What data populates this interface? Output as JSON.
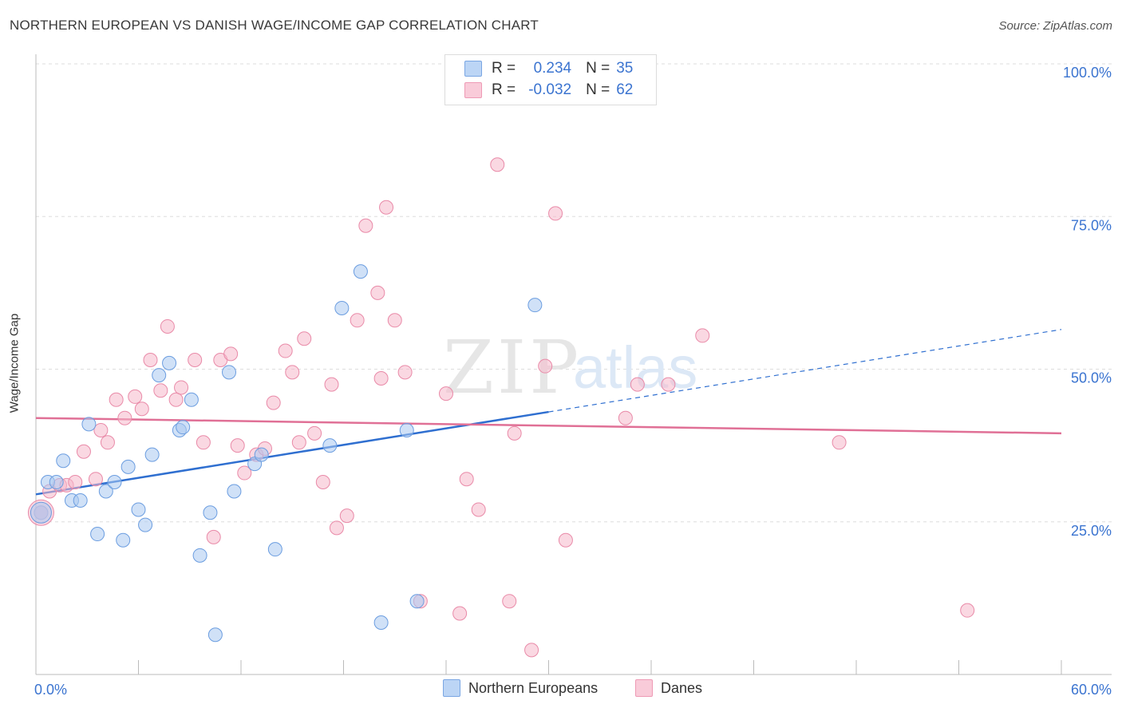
{
  "title": "NORTHERN EUROPEAN VS DANISH WAGE/INCOME GAP CORRELATION CHART",
  "source": "Source: ZipAtlas.com",
  "watermark": {
    "zip": "ZIP",
    "atlas": "atlas"
  },
  "legend": {
    "rows": [
      {
        "r_label": "R =",
        "r_value": "0.234",
        "n_label": "N =",
        "n_value": "35"
      },
      {
        "r_label": "R =",
        "r_value": "-0.032",
        "n_label": "N =",
        "n_value": "62"
      }
    ]
  },
  "series_labels": {
    "a": "Northern Europeans",
    "b": "Danes"
  },
  "colors": {
    "blue_fill": "#a9c8f0",
    "blue_stroke": "#6b9de0",
    "blue_line": "#2f6fd0",
    "pink_fill": "#f6b8cb",
    "pink_stroke": "#e98aa8",
    "pink_line": "#e07096",
    "tick_text": "#3b74d0",
    "grid": "#dddddd"
  },
  "chart_data": {
    "type": "scatter",
    "title": "NORTHERN EUROPEAN VS DANISH WAGE/INCOME GAP CORRELATION CHART",
    "xlabel": "",
    "ylabel": "Wage/Income Gap",
    "xlim": [
      0,
      60
    ],
    "ylim": [
      0,
      100
    ],
    "x_tick_labels": [
      "0.0%",
      "60.0%"
    ],
    "y_ticks": [
      25,
      50,
      75,
      100
    ],
    "y_tick_labels": [
      "25.0%",
      "50.0%",
      "75.0%",
      "100.0%"
    ],
    "legend_position": "top-center",
    "series": [
      {
        "name": "Northern Europeans",
        "r": 0.234,
        "n": 35,
        "trend": {
          "x0": 0,
          "y0": 29.5,
          "x1": 60,
          "y1": 56.5,
          "solid_until_x": 30
        },
        "points": [
          [
            0.3,
            26.5
          ],
          [
            0.7,
            31.5
          ],
          [
            1.2,
            31.5
          ],
          [
            1.6,
            35
          ],
          [
            2.1,
            28.5
          ],
          [
            2.6,
            28.5
          ],
          [
            3.1,
            41
          ],
          [
            3.6,
            23
          ],
          [
            4.1,
            30
          ],
          [
            4.6,
            31.5
          ],
          [
            5.1,
            22
          ],
          [
            5.4,
            34
          ],
          [
            6.0,
            27
          ],
          [
            6.4,
            24.5
          ],
          [
            6.8,
            36
          ],
          [
            7.2,
            49
          ],
          [
            7.8,
            51
          ],
          [
            8.4,
            40
          ],
          [
            8.6,
            40.5
          ],
          [
            9.1,
            45
          ],
          [
            9.6,
            19.5
          ],
          [
            10.2,
            26.5
          ],
          [
            10.5,
            6.5
          ],
          [
            11.3,
            49.5
          ],
          [
            11.6,
            30
          ],
          [
            12.8,
            34.5
          ],
          [
            13.2,
            36
          ],
          [
            14.0,
            20.5
          ],
          [
            17.2,
            37.5
          ],
          [
            17.9,
            60
          ],
          [
            19.0,
            66
          ],
          [
            20.2,
            8.5
          ],
          [
            21.7,
            40
          ],
          [
            22.3,
            12
          ],
          [
            29.2,
            60.5
          ]
        ]
      },
      {
        "name": "Danes",
        "r": -0.032,
        "n": 62,
        "trend": {
          "x0": 0,
          "y0": 42,
          "x1": 60,
          "y1": 39.5
        },
        "points": [
          [
            0.3,
            26.5
          ],
          [
            0.8,
            30
          ],
          [
            1.4,
            31
          ],
          [
            1.8,
            31
          ],
          [
            2.3,
            31.5
          ],
          [
            2.8,
            36.5
          ],
          [
            3.5,
            32
          ],
          [
            3.8,
            40
          ],
          [
            4.2,
            38
          ],
          [
            4.7,
            45
          ],
          [
            5.2,
            42
          ],
          [
            5.8,
            45.5
          ],
          [
            6.2,
            43.5
          ],
          [
            6.7,
            51.5
          ],
          [
            7.3,
            46.5
          ],
          [
            7.7,
            57
          ],
          [
            8.2,
            45
          ],
          [
            8.5,
            47
          ],
          [
            9.3,
            51.5
          ],
          [
            9.8,
            38
          ],
          [
            10.4,
            22.5
          ],
          [
            10.8,
            51.5
          ],
          [
            11.4,
            52.5
          ],
          [
            11.8,
            37.5
          ],
          [
            12.2,
            33
          ],
          [
            12.9,
            36
          ],
          [
            13.4,
            37
          ],
          [
            13.9,
            44.5
          ],
          [
            14.6,
            53
          ],
          [
            15.0,
            49.5
          ],
          [
            15.4,
            38
          ],
          [
            15.7,
            55
          ],
          [
            16.3,
            39.5
          ],
          [
            16.8,
            31.5
          ],
          [
            17.3,
            47.5
          ],
          [
            17.6,
            24
          ],
          [
            18.2,
            26
          ],
          [
            18.8,
            58
          ],
          [
            19.3,
            73.5
          ],
          [
            20.0,
            62.5
          ],
          [
            20.2,
            48.5
          ],
          [
            20.5,
            76.5
          ],
          [
            21.0,
            58
          ],
          [
            21.6,
            49.5
          ],
          [
            22.5,
            12
          ],
          [
            24.0,
            46
          ],
          [
            24.8,
            10
          ],
          [
            25.2,
            32
          ],
          [
            25.9,
            27
          ],
          [
            27.0,
            83.5
          ],
          [
            27.7,
            12
          ],
          [
            28.0,
            39.5
          ],
          [
            29.0,
            4
          ],
          [
            29.8,
            50.5
          ],
          [
            30.4,
            75.5
          ],
          [
            31.0,
            22
          ],
          [
            34.5,
            42
          ],
          [
            35.2,
            47.5
          ],
          [
            37.0,
            47.5
          ],
          [
            39.0,
            55.5
          ],
          [
            47.0,
            38
          ],
          [
            54.5,
            10.5
          ]
        ]
      }
    ]
  }
}
